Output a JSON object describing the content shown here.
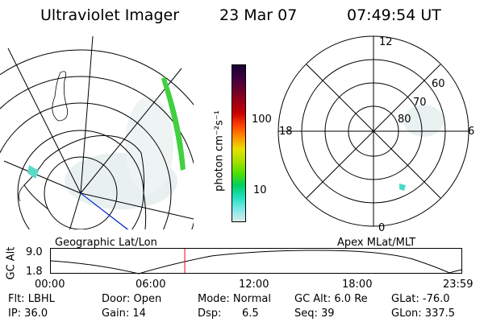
{
  "header": {
    "title": "Ultraviolet Imager",
    "date": "23 Mar 07",
    "time": "07:49:54 UT"
  },
  "left_panel": {
    "label": "Geographic Lat/Lon"
  },
  "right_panel": {
    "label": "Apex MLat/MLT",
    "mlt_labels": {
      "top": "12",
      "bottom": "0",
      "left": "18",
      "right": "6"
    },
    "lat_labels": [
      "60",
      "70",
      "80"
    ]
  },
  "colorbar": {
    "unit": "photon cm⁻²s⁻¹",
    "ticks": [
      "100",
      "10"
    ],
    "colors": [
      "#1a0033",
      "#3a0040",
      "#6a0030",
      "#9a0018",
      "#c80000",
      "#ff4000",
      "#ff9000",
      "#e8e000",
      "#a8e000",
      "#50e000",
      "#00d060",
      "#20e0c0",
      "#80e8e8",
      "#d8ecec"
    ]
  },
  "timeline": {
    "axis_label": "GC Alt",
    "y_ticks": [
      "9.0",
      "1.8"
    ],
    "x_ticks": [
      "00:00",
      "06:00",
      "12:00",
      "18:00",
      "23:59"
    ],
    "marker_time_hours": 7.83,
    "marker_color": "#ff0000"
  },
  "meta": {
    "flt": "Flt: LBHL",
    "ip": "IP: 36.0",
    "door": "Door: Open",
    "gain": "Gain: 14",
    "mode": "Mode: Normal",
    "dsp": "Dsp:",
    "dsp_value": "6.5",
    "gc_alt": "GC Alt: 6.0 Re",
    "seq": "Seq: 39",
    "glat": "GLat: -76.0",
    "glon": "GLon: 337.5"
  }
}
